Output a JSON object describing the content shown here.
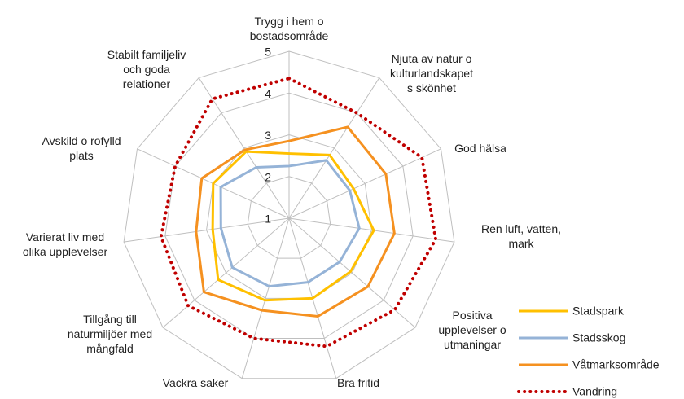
{
  "chart_data": {
    "type": "radar",
    "categories": [
      "Trygg i hem o\nbostadsområde",
      "Njuta av natur o\nkulturlandskapet\ns skönhet",
      "God hälsa",
      "Ren luft, vatten,\nmark",
      "Positiva\nupplevelser o\nutmaningar",
      "Bra fritid",
      "Vackra saker",
      "Tillgång till\nnaturmiljöer med\nmångfald",
      "Varierat liv med\nolika upplevelser",
      "Avskild o rofylld\nplats",
      "Stabilt familjeliv\noch goda\nrelationer"
    ],
    "series": [
      {
        "name": "Stadspark",
        "color": "#ffc000",
        "style": "solid",
        "values": [
          2.55,
          2.8,
          2.7,
          3.05,
          2.95,
          3.0,
          3.05,
          3.25,
          2.85,
          3.0,
          2.9
        ]
      },
      {
        "name": "Stadsskog",
        "color": "#95b3d7",
        "style": "solid",
        "values": [
          2.25,
          2.65,
          2.6,
          2.7,
          2.6,
          2.6,
          2.7,
          2.8,
          2.65,
          2.8,
          2.45
        ]
      },
      {
        "name": "Våtmarksområde",
        "color": "#f59120",
        "style": "solid",
        "values": [
          2.85,
          3.6,
          3.55,
          3.55,
          3.5,
          3.45,
          3.3,
          3.7,
          3.25,
          3.3,
          2.95
        ]
      },
      {
        "name": "Vandring",
        "color": "#c00000",
        "style": "dotted",
        "values": [
          4.35,
          4.0,
          4.5,
          4.55,
          4.35,
          4.2,
          4.0,
          4.2,
          4.1,
          4.0,
          4.4
        ]
      }
    ],
    "ylim": [
      1,
      5
    ],
    "yticks": [
      1,
      2,
      3,
      4,
      5
    ],
    "grid": true,
    "legend": "right"
  }
}
